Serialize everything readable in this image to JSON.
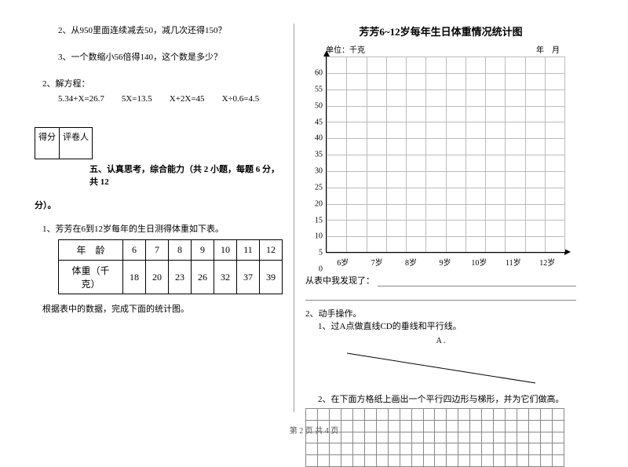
{
  "left": {
    "q2": "2、从950里面连续减去50，减几次还得150？",
    "q3": "3、一个数缩小56倍得140，这个数是多少？",
    "q2_label": "2、解方程：",
    "eq1": "5.34+X=26.7",
    "eq2": "5X=13.5",
    "eq3": "X+2X=45",
    "eq4": "X÷0.6=4.5",
    "score_a": "得分",
    "score_b": "评卷人",
    "section5": "五、认真思考，综合能力（共 2 小题，每题 6 分，共 12",
    "section5b": "分）。",
    "p1": "1、芳芳在6到12岁每年的生日测得体重如下表。",
    "tbl_h1": "年　龄",
    "tbl_r1": "体重（千克）",
    "ages": [
      "6",
      "7",
      "8",
      "9",
      "10",
      "11",
      "12"
    ],
    "weights": [
      "18",
      "20",
      "23",
      "26",
      "32",
      "37",
      "39"
    ],
    "p1b": "根据表中的数据，完成下面的统计图。"
  },
  "right": {
    "chart_title": "芳芳6~12岁每年生日体重情况统计图",
    "unit": "单位：千克",
    "date": "年　月",
    "yvals": [
      "60",
      "55",
      "50",
      "45",
      "40",
      "35",
      "30",
      "25",
      "20",
      "15",
      "10",
      "5",
      "0"
    ],
    "xlabels": [
      "6岁",
      "7岁",
      "8岁",
      "9岁",
      "10岁",
      "11岁",
      "12岁"
    ],
    "found": "从表中我发现了：",
    "p2": "2、动手操作。",
    "p2a": "1、过A点做直线CD的垂线和平行线。",
    "pointA": "A .",
    "p2b": "2、在下面方格纸上画出一个平行四边形与梯形，并为它们做高。",
    "grid_style": {
      "cols": 22,
      "rows": 5,
      "cell": 15
    }
  },
  "footer": "第 2 页 共 4 页"
}
